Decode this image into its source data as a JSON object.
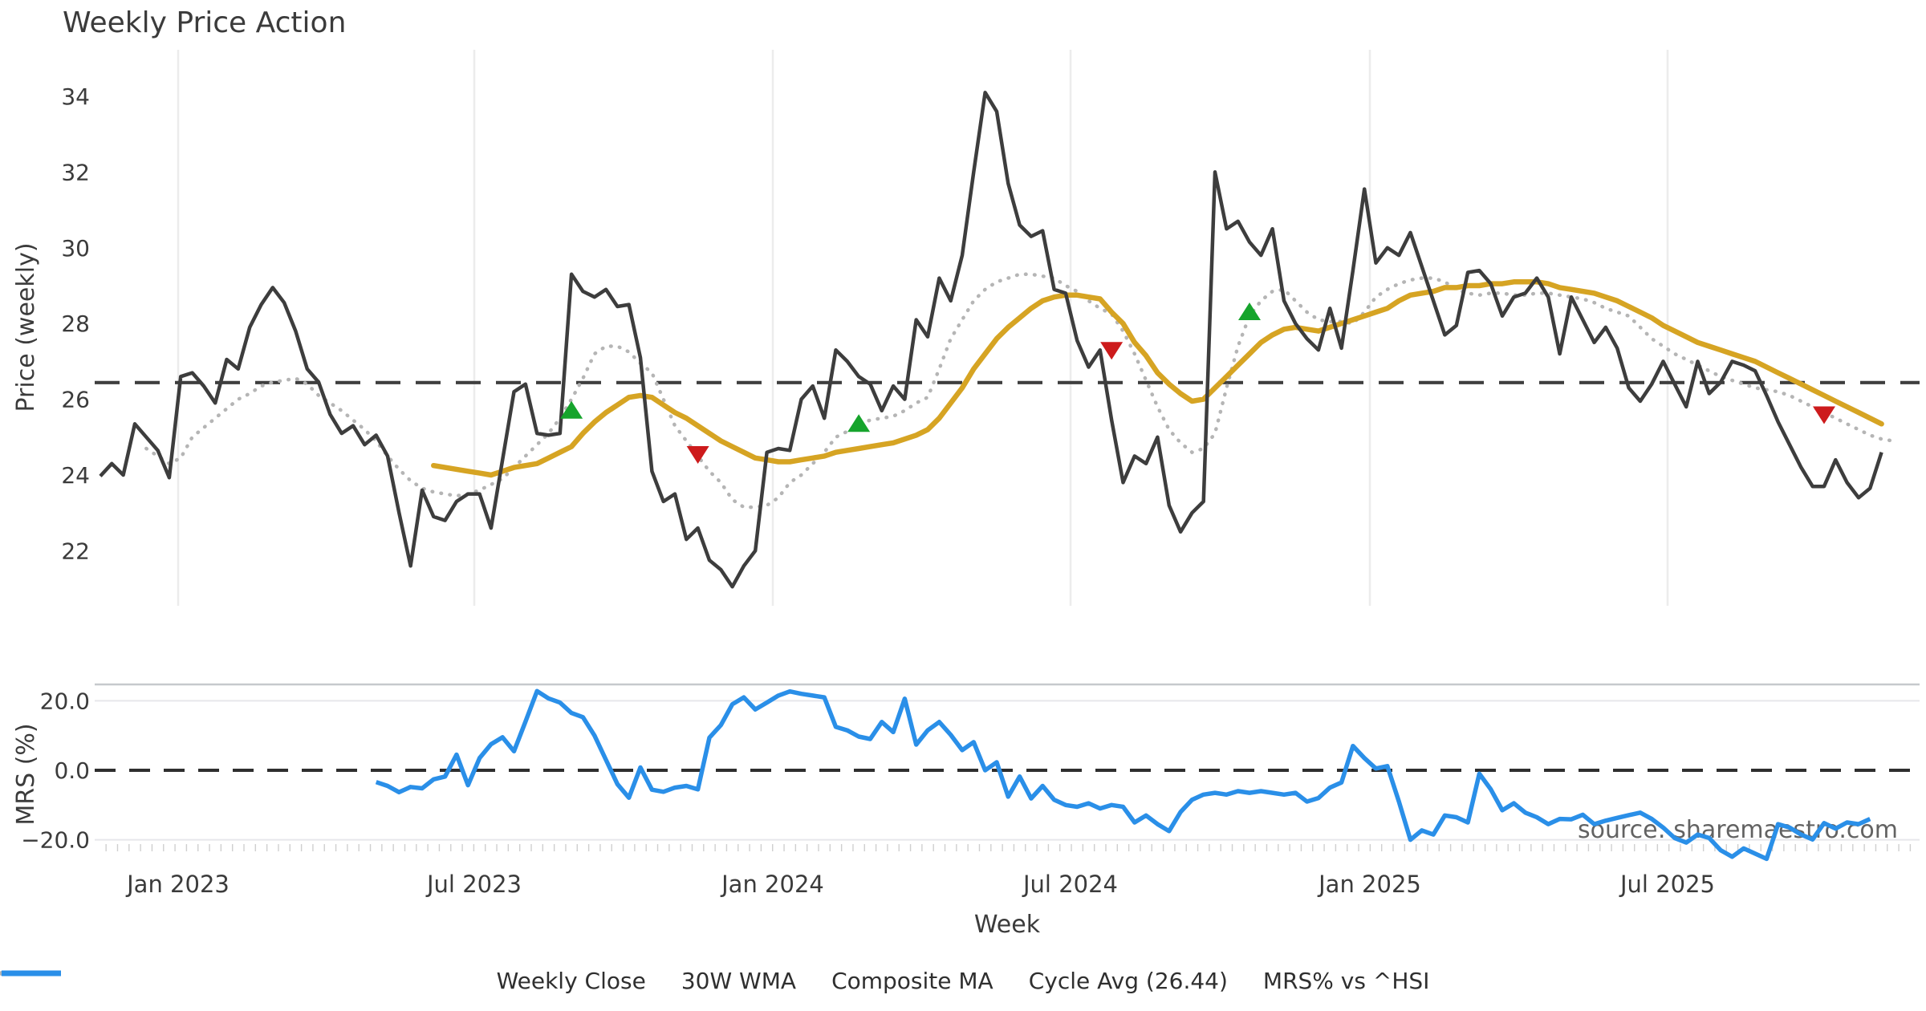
{
  "title": "Weekly Price Action",
  "watermark": "source: sharemaestro.com",
  "xlabel": "Week",
  "legend": [
    {
      "label": "Weekly Close",
      "series": "weekly_close"
    },
    {
      "label": "30W WMA",
      "series": "wma_30w"
    },
    {
      "label": "Composite MA",
      "series": "composite_ma"
    },
    {
      "label": "Cycle Avg (26.44)",
      "series": "cycle_avg"
    },
    {
      "label": "MRS% vs ^HSI",
      "series": "mrs_pct"
    }
  ],
  "colors": {
    "weekly_close": "#3d3d3d",
    "wma_30w": "#d6a423",
    "composite_ma": "#b5b5b5",
    "cycle_avg": "#3f3f3f",
    "mrs_pct": "#2a8fe8",
    "buy_marker": "#16a42c",
    "sell_marker": "#cd1b1c",
    "gridline": "#ececec",
    "panel_line": "#c6c9cd",
    "watermark": "#a3a3a3"
  },
  "chart_data": {
    "type": "line",
    "x_tick_labels": [
      "Jan 2023",
      "Jul 2023",
      "Jan 2024",
      "Jul 2024",
      "Jan 2025",
      "Jul 2025"
    ],
    "panels": [
      {
        "ylabel": "Price (weekly)",
        "yticks": [
          {
            "label": "34",
            "value": 34
          },
          {
            "label": "32",
            "value": 32
          },
          {
            "label": "30",
            "value": 30
          },
          {
            "label": "28",
            "value": 28
          },
          {
            "label": "26",
            "value": 26
          },
          {
            "label": "24",
            "value": 24
          },
          {
            "label": "22",
            "value": 22
          }
        ],
        "ylim": [
          20.5,
          35.2
        ]
      },
      {
        "ylabel": "MRS (%)",
        "yticks": [
          {
            "label": "20.0",
            "value": 20
          },
          {
            "label": "0.0",
            "value": 0
          },
          {
            "label": "−20.0",
            "value": -20
          }
        ],
        "ylim": [
          -26.5,
          24.5
        ]
      }
    ],
    "cycle_avg_value": 26.44,
    "series": {
      "weekly_close": {
        "start_week": 0,
        "values": [
          23.97,
          24.3,
          24.0,
          25.35,
          25.0,
          24.65,
          23.93,
          26.6,
          26.7,
          26.35,
          25.9,
          27.05,
          26.8,
          27.9,
          28.5,
          28.95,
          28.55,
          27.8,
          26.8,
          26.45,
          25.6,
          25.1,
          25.3,
          24.8,
          25.05,
          24.5,
          23.0,
          21.6,
          23.6,
          22.9,
          22.8,
          23.3,
          23.5,
          23.5,
          22.6,
          24.4,
          26.2,
          26.4,
          25.1,
          25.05,
          25.1,
          29.3,
          28.85,
          28.7,
          28.9,
          28.45,
          28.5,
          27.1,
          24.1,
          23.3,
          23.5,
          22.3,
          22.6,
          21.75,
          21.5,
          21.05,
          21.6,
          22.0,
          24.6,
          24.7,
          24.65,
          26.0,
          26.35,
          25.5,
          27.3,
          27.0,
          26.6,
          26.4,
          25.7,
          26.35,
          26.0,
          28.1,
          27.65,
          29.2,
          28.6,
          29.8,
          32.0,
          34.1,
          33.6,
          31.7,
          30.6,
          30.3,
          30.45,
          28.9,
          28.8,
          27.55,
          26.85,
          27.3,
          25.45,
          23.8,
          24.5,
          24.3,
          25.0,
          23.2,
          22.5,
          23.0,
          23.3,
          32.0,
          30.5,
          30.7,
          30.15,
          29.8,
          30.5,
          28.6,
          28.0,
          27.6,
          27.3,
          28.4,
          27.35,
          29.4,
          31.55,
          29.6,
          30.0,
          29.8,
          30.4,
          29.5,
          28.6,
          27.7,
          27.95,
          29.35,
          29.4,
          29.05,
          28.2,
          28.7,
          28.8,
          29.2,
          28.7,
          27.2,
          28.7,
          28.1,
          27.5,
          27.9,
          27.35,
          26.3,
          25.95,
          26.4,
          27.0,
          26.4,
          25.8,
          27.0,
          26.15,
          26.45,
          27.0,
          26.9,
          26.75,
          26.1,
          25.4,
          24.8,
          24.2,
          23.7,
          23.7,
          24.4,
          23.8,
          23.4,
          23.65,
          24.6
        ]
      },
      "wma_30w": {
        "start_week": 29,
        "values": [
          24.25,
          24.2,
          24.15,
          24.1,
          24.05,
          24.0,
          24.1,
          24.2,
          24.25,
          24.3,
          24.45,
          24.6,
          24.75,
          25.1,
          25.4,
          25.65,
          25.85,
          26.05,
          26.1,
          26.05,
          25.85,
          25.65,
          25.5,
          25.3,
          25.1,
          24.9,
          24.75,
          24.6,
          24.45,
          24.4,
          24.35,
          24.35,
          24.4,
          24.45,
          24.5,
          24.6,
          24.65,
          24.7,
          24.75,
          24.8,
          24.85,
          24.95,
          25.05,
          25.2,
          25.5,
          25.9,
          26.3,
          26.8,
          27.2,
          27.6,
          27.9,
          28.15,
          28.4,
          28.6,
          28.7,
          28.75,
          28.75,
          28.7,
          28.65,
          28.3,
          28.0,
          27.5,
          27.15,
          26.7,
          26.4,
          26.15,
          25.95,
          26.0,
          26.3,
          26.6,
          26.9,
          27.2,
          27.5,
          27.7,
          27.85,
          27.9,
          27.85,
          27.8,
          27.9,
          28.0,
          28.1,
          28.2,
          28.3,
          28.4,
          28.6,
          28.75,
          28.8,
          28.85,
          28.95,
          28.95,
          29.0,
          29.0,
          29.05,
          29.05,
          29.1,
          29.1,
          29.1,
          29.05,
          28.95,
          28.9,
          28.85,
          28.8,
          28.7,
          28.6,
          28.45,
          28.3,
          28.15,
          27.95,
          27.8,
          27.65,
          27.5,
          27.4,
          27.3,
          27.2,
          27.1,
          27.0,
          26.85,
          26.7,
          26.55,
          26.4,
          26.25,
          26.1,
          25.95,
          25.8,
          25.65,
          25.5,
          25.35
        ]
      },
      "composite_ma": {
        "start_week": 4,
        "values": [
          24.7,
          24.5,
          24.3,
          24.45,
          25.0,
          25.25,
          25.5,
          25.75,
          26.0,
          26.15,
          26.35,
          26.45,
          26.5,
          26.55,
          26.4,
          26.1,
          25.9,
          25.7,
          25.45,
          25.2,
          24.9,
          24.5,
          24.15,
          23.85,
          23.65,
          23.55,
          23.5,
          23.45,
          23.5,
          23.6,
          23.75,
          23.9,
          24.2,
          24.5,
          24.8,
          25.1,
          25.5,
          26.0,
          26.55,
          27.2,
          27.4,
          27.4,
          27.25,
          26.95,
          26.7,
          26.0,
          25.3,
          24.9,
          24.5,
          24.1,
          23.8,
          23.35,
          23.15,
          23.15,
          23.2,
          23.4,
          23.8,
          24.0,
          24.3,
          24.6,
          25.0,
          25.15,
          25.35,
          25.45,
          25.5,
          25.55,
          25.7,
          25.9,
          26.05,
          26.8,
          27.6,
          28.1,
          28.6,
          28.9,
          29.1,
          29.2,
          29.3,
          29.3,
          29.25,
          29.2,
          29.0,
          28.85,
          28.6,
          28.4,
          28.25,
          27.8,
          27.2,
          26.5,
          25.8,
          25.2,
          24.85,
          24.6,
          24.7,
          25.1,
          26.3,
          27.4,
          28.2,
          28.6,
          28.85,
          28.9,
          28.6,
          28.3,
          28.1,
          28.05,
          28.05,
          28.0,
          28.3,
          28.7,
          28.9,
          29.05,
          29.15,
          29.2,
          29.2,
          29.1,
          28.9,
          28.8,
          28.75,
          28.8,
          28.8,
          28.75,
          28.75,
          28.8,
          28.8,
          28.75,
          28.7,
          28.65,
          28.55,
          28.4,
          28.3,
          28.2,
          27.9,
          27.6,
          27.4,
          27.2,
          27.05,
          26.9,
          26.75,
          26.6,
          26.5,
          26.4,
          26.3,
          26.25,
          26.2,
          26.1,
          25.95,
          25.8,
          25.65,
          25.5,
          25.35,
          25.2,
          25.05,
          24.95,
          24.9
        ]
      },
      "mrs_pct": {
        "start_week": 24,
        "values": [
          -3.4,
          -4.5,
          -6.3,
          -4.8,
          -5.2,
          -2.6,
          -1.8,
          4.5,
          -4.3,
          3.5,
          7.5,
          9.5,
          5.5,
          14.0,
          22.8,
          20.7,
          19.5,
          16.5,
          15.3,
          10.0,
          3.0,
          -4.0,
          -7.9,
          0.8,
          -5.6,
          -6.2,
          -5.0,
          -4.5,
          -5.5,
          9.4,
          13.0,
          19.0,
          21.0,
          17.5,
          19.5,
          21.5,
          22.7,
          22.0,
          21.5,
          21.0,
          12.5,
          11.5,
          9.7,
          9.0,
          13.9,
          11.0,
          20.6,
          7.4,
          11.5,
          13.9,
          10.2,
          5.8,
          8.1,
          0.0,
          2.3,
          -7.6,
          -1.8,
          -8.1,
          -4.5,
          -8.5,
          -10.0,
          -10.5,
          -9.5,
          -11.0,
          -10.0,
          -10.5,
          -15.0,
          -13.0,
          -15.5,
          -17.5,
          -12.0,
          -8.5,
          -7.0,
          -6.5,
          -7.0,
          -6.0,
          -6.5,
          -6.0,
          -6.5,
          -7.0,
          -6.5,
          -9.0,
          -8.0,
          -5.0,
          -3.5,
          7.0,
          3.5,
          0.5,
          1.2,
          -9.0,
          -20.0,
          -17.3,
          -18.5,
          -13.0,
          -13.5,
          -15.0,
          -1.0,
          -5.5,
          -11.5,
          -9.5,
          -12.2,
          -13.5,
          -15.5,
          -14.0,
          -14.1,
          -12.8,
          -15.5,
          -14.5,
          -13.7,
          -12.9,
          -12.2,
          -14.0,
          -16.5,
          -19.5,
          -20.8,
          -18.5,
          -19.5,
          -23.0,
          -24.9,
          -22.5,
          -24.0,
          -25.5,
          -15.5,
          -16.5,
          -18.5,
          -19.9,
          -15.2,
          -16.8,
          -15.0,
          -15.5,
          -14.0
        ]
      }
    },
    "markers": {
      "buy": [
        {
          "week": 41,
          "value": 25.7
        },
        {
          "week": 66,
          "value": 25.35
        },
        {
          "week": 100,
          "value": 28.3
        }
      ],
      "sell": [
        {
          "week": 52,
          "value": 24.55
        },
        {
          "week": 88,
          "value": 27.3
        },
        {
          "week": 150,
          "value": 25.6
        }
      ]
    }
  }
}
